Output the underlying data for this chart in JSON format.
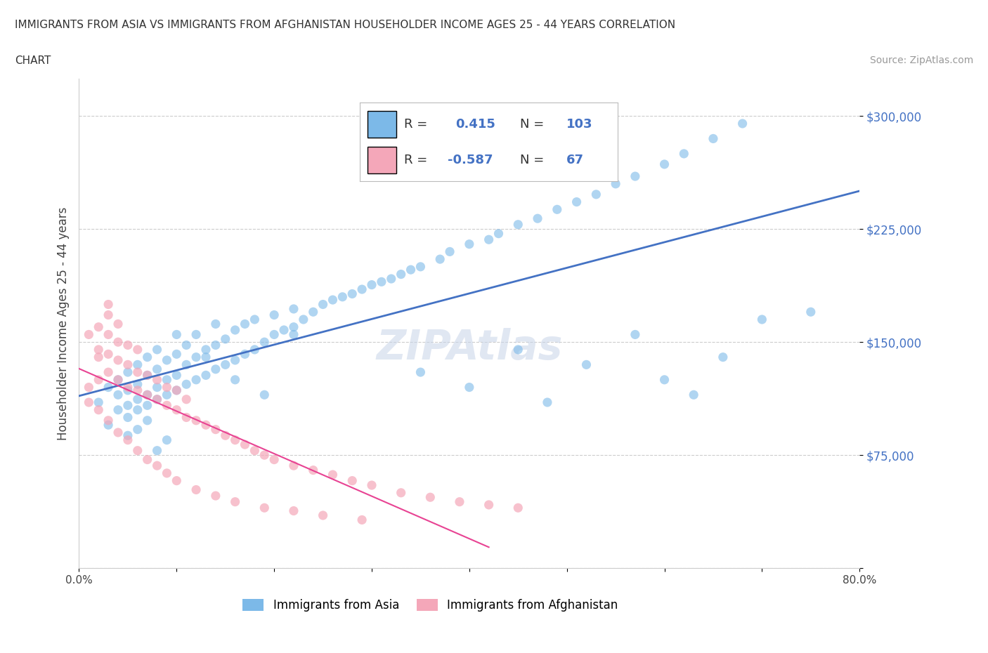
{
  "title_line1": "IMMIGRANTS FROM ASIA VS IMMIGRANTS FROM AFGHANISTAN HOUSEHOLDER INCOME AGES 25 - 44 YEARS CORRELATION",
  "title_line2": "CHART",
  "source_text": "Source: ZipAtlas.com",
  "ylabel": "Householder Income Ages 25 - 44 years",
  "xlim": [
    0.0,
    0.8
  ],
  "ylim": [
    0,
    325000
  ],
  "yticks": [
    0,
    75000,
    150000,
    225000,
    300000
  ],
  "ytick_labels": [
    "",
    "$75,000",
    "$150,000",
    "$225,000",
    "$300,000"
  ],
  "xticks": [
    0.0,
    0.1,
    0.2,
    0.3,
    0.4,
    0.5,
    0.6,
    0.7,
    0.8
  ],
  "xtick_labels": [
    "0.0%",
    "",
    "",
    "",
    "",
    "",
    "",
    "",
    "80.0%"
  ],
  "asia_color": "#7cb9e8",
  "afghanistan_color": "#f4a7b9",
  "asia_line_color": "#4472c4",
  "afghanistan_line_color": "#e84393",
  "watermark": "ZIPAtlas",
  "legend_R_asia": "0.415",
  "legend_N_asia": "103",
  "legend_R_afghan": "-0.587",
  "legend_N_afghan": "67",
  "asia_scatter_x": [
    0.02,
    0.03,
    0.03,
    0.04,
    0.04,
    0.04,
    0.05,
    0.05,
    0.05,
    0.05,
    0.06,
    0.06,
    0.06,
    0.06,
    0.07,
    0.07,
    0.07,
    0.07,
    0.08,
    0.08,
    0.08,
    0.08,
    0.09,
    0.09,
    0.09,
    0.1,
    0.1,
    0.1,
    0.1,
    0.11,
    0.11,
    0.11,
    0.12,
    0.12,
    0.12,
    0.13,
    0.13,
    0.14,
    0.14,
    0.14,
    0.15,
    0.15,
    0.16,
    0.16,
    0.17,
    0.17,
    0.18,
    0.18,
    0.19,
    0.2,
    0.2,
    0.21,
    0.22,
    0.22,
    0.23,
    0.24,
    0.25,
    0.26,
    0.27,
    0.28,
    0.29,
    0.3,
    0.31,
    0.32,
    0.33,
    0.34,
    0.35,
    0.37,
    0.38,
    0.4,
    0.42,
    0.43,
    0.45,
    0.47,
    0.49,
    0.51,
    0.53,
    0.55,
    0.57,
    0.6,
    0.62,
    0.65,
    0.68,
    0.05,
    0.06,
    0.07,
    0.08,
    0.09,
    0.13,
    0.16,
    0.19,
    0.22,
    0.35,
    0.4,
    0.45,
    0.48,
    0.52,
    0.57,
    0.6,
    0.63,
    0.66,
    0.7,
    0.75
  ],
  "asia_scatter_y": [
    110000,
    95000,
    120000,
    105000,
    115000,
    125000,
    100000,
    108000,
    118000,
    130000,
    105000,
    112000,
    122000,
    135000,
    108000,
    115000,
    128000,
    140000,
    112000,
    120000,
    132000,
    145000,
    115000,
    125000,
    138000,
    118000,
    128000,
    142000,
    155000,
    122000,
    135000,
    148000,
    125000,
    140000,
    155000,
    128000,
    145000,
    132000,
    148000,
    162000,
    135000,
    152000,
    138000,
    158000,
    142000,
    162000,
    145000,
    165000,
    150000,
    155000,
    168000,
    158000,
    160000,
    172000,
    165000,
    170000,
    175000,
    178000,
    180000,
    182000,
    185000,
    188000,
    190000,
    192000,
    195000,
    198000,
    200000,
    205000,
    210000,
    215000,
    218000,
    222000,
    228000,
    232000,
    238000,
    243000,
    248000,
    255000,
    260000,
    268000,
    275000,
    285000,
    295000,
    88000,
    92000,
    98000,
    78000,
    85000,
    140000,
    125000,
    115000,
    155000,
    130000,
    120000,
    145000,
    110000,
    135000,
    155000,
    125000,
    115000,
    140000,
    165000,
    170000
  ],
  "afghan_scatter_x": [
    0.01,
    0.01,
    0.02,
    0.02,
    0.02,
    0.02,
    0.03,
    0.03,
    0.03,
    0.03,
    0.03,
    0.04,
    0.04,
    0.04,
    0.04,
    0.05,
    0.05,
    0.05,
    0.06,
    0.06,
    0.06,
    0.07,
    0.07,
    0.08,
    0.08,
    0.09,
    0.09,
    0.1,
    0.1,
    0.11,
    0.11,
    0.12,
    0.13,
    0.14,
    0.15,
    0.16,
    0.17,
    0.18,
    0.19,
    0.2,
    0.22,
    0.24,
    0.26,
    0.28,
    0.3,
    0.33,
    0.36,
    0.39,
    0.42,
    0.45,
    0.01,
    0.02,
    0.03,
    0.04,
    0.05,
    0.06,
    0.07,
    0.08,
    0.09,
    0.1,
    0.12,
    0.14,
    0.16,
    0.19,
    0.22,
    0.25,
    0.29
  ],
  "afghan_scatter_y": [
    155000,
    120000,
    140000,
    125000,
    145000,
    160000,
    130000,
    142000,
    155000,
    168000,
    175000,
    125000,
    138000,
    150000,
    162000,
    120000,
    135000,
    148000,
    118000,
    130000,
    145000,
    115000,
    128000,
    112000,
    125000,
    108000,
    120000,
    105000,
    118000,
    100000,
    112000,
    98000,
    95000,
    92000,
    88000,
    85000,
    82000,
    78000,
    75000,
    72000,
    68000,
    65000,
    62000,
    58000,
    55000,
    50000,
    47000,
    44000,
    42000,
    40000,
    110000,
    105000,
    98000,
    90000,
    85000,
    78000,
    72000,
    68000,
    63000,
    58000,
    52000,
    48000,
    44000,
    40000,
    38000,
    35000,
    32000
  ]
}
